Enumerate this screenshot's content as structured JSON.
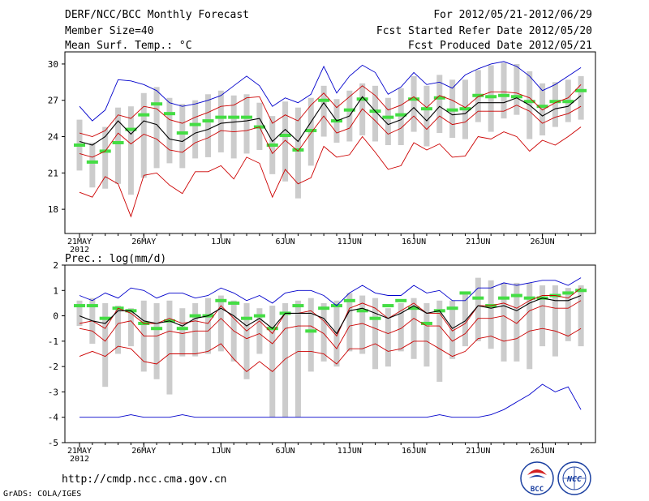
{
  "header": {
    "title": "DERF/NCC/BCC Monthly Forecast",
    "member_size": "Member Size=40",
    "variable": "Mean Surf. Temp.: °C",
    "period": "For 2012/05/21-2012/06/29",
    "start_date": "Fcst Started Refer Date 2012/05/20",
    "produced_date": "Fcst Produced Date 2012/05/21"
  },
  "footer": {
    "url": "http://cmdp.ncc.cma.gov.cn",
    "grads": "GrADS: COLA/IGES",
    "logo_bcc": "BCC",
    "logo_ncc": "NCC"
  },
  "colors": {
    "max_min": "#0000cc",
    "quartile": "#cc0000",
    "mean": "#000000",
    "observed": "#44dd44",
    "spread_bar": "#cccccc"
  },
  "chart_data": [
    {
      "type": "line",
      "title": "Mean Surf. Temp.: °C",
      "ylim": [
        16,
        31
      ],
      "yticks": [
        18,
        21,
        24,
        27,
        30
      ],
      "xtick_labels": [
        "21MAY",
        "26MAY",
        "1JUN",
        "6JUN",
        "11JUN",
        "16JUN",
        "21JUN",
        "26JUN"
      ],
      "xtick_index": [
        0,
        5,
        11,
        16,
        21,
        26,
        31,
        36
      ],
      "year_label": "2012",
      "series": [
        {
          "name": "max",
          "values": [
            26.5,
            25.3,
            26.2,
            28.7,
            28.6,
            28.3,
            27.8,
            26.8,
            26.5,
            26.7,
            27.0,
            27.4,
            28.2,
            29.0,
            28.2,
            26.5,
            27.2,
            26.8,
            27.5,
            29.8,
            27.6,
            29.0,
            29.9,
            29.3,
            27.5,
            28.1,
            29.3,
            28.3,
            28.5,
            28.0,
            29.1,
            29.6,
            30.0,
            30.2,
            29.8,
            29.0,
            27.8,
            28.3,
            29.0,
            29.7
          ]
        },
        {
          "name": "upper_quartile",
          "values": [
            24.3,
            24.0,
            24.5,
            25.8,
            25.5,
            26.5,
            26.3,
            25.4,
            25.1,
            25.6,
            26.0,
            26.5,
            26.6,
            27.2,
            27.3,
            25.1,
            25.8,
            25.3,
            26.6,
            27.6,
            26.4,
            27.3,
            28.2,
            27.4,
            26.2,
            26.6,
            27.3,
            26.4,
            27.4,
            27.0,
            26.4,
            27.3,
            27.7,
            27.7,
            27.6,
            27.2,
            26.2,
            26.8,
            27.2,
            28.3
          ]
        },
        {
          "name": "mean",
          "values": [
            23.6,
            23.3,
            24.0,
            25.3,
            24.2,
            25.3,
            25.0,
            23.8,
            23.6,
            24.3,
            24.6,
            25.1,
            25.2,
            25.3,
            25.5,
            23.6,
            24.6,
            23.6,
            25.2,
            26.8,
            25.3,
            25.7,
            27.3,
            26.1,
            25.0,
            25.4,
            26.4,
            25.3,
            26.5,
            25.8,
            25.9,
            26.8,
            26.8,
            26.8,
            27.2,
            26.6,
            25.7,
            26.3,
            26.5,
            27.4
          ]
        },
        {
          "name": "lower_quartile",
          "values": [
            22.6,
            22.3,
            22.8,
            24.3,
            23.4,
            24.2,
            23.8,
            22.9,
            22.7,
            23.5,
            23.9,
            24.5,
            24.4,
            24.5,
            24.8,
            22.6,
            23.7,
            22.8,
            24.3,
            25.7,
            24.3,
            24.7,
            26.3,
            25.3,
            24.2,
            24.7,
            25.7,
            24.6,
            25.7,
            25.0,
            25.2,
            26.1,
            26.1,
            26.1,
            26.6,
            26.1,
            25.1,
            25.6,
            25.9,
            26.5
          ]
        },
        {
          "name": "min",
          "values": [
            19.4,
            19.0,
            20.7,
            20.1,
            17.4,
            20.8,
            21.0,
            20.0,
            19.3,
            21.1,
            21.1,
            21.6,
            20.5,
            22.3,
            21.8,
            19.0,
            21.3,
            20.1,
            20.6,
            23.2,
            22.3,
            22.5,
            24.0,
            22.7,
            21.3,
            21.6,
            23.5,
            22.9,
            23.4,
            22.3,
            22.4,
            24.0,
            23.8,
            24.4,
            24.0,
            22.8,
            23.7,
            23.3,
            24.0,
            24.8
          ]
        },
        {
          "name": "observed",
          "values": [
            23.3,
            21.9,
            22.8,
            23.5,
            24.6,
            25.8,
            26.7,
            25.9,
            24.3,
            25.0,
            25.3,
            25.6,
            25.6,
            25.6,
            24.8,
            23.3,
            24.1,
            22.9,
            24.5,
            27.0,
            25.3,
            26.2,
            27.1,
            26.1,
            25.6,
            25.8,
            27.1,
            26.3,
            27.2,
            26.2,
            26.3,
            27.4,
            27.3,
            27.4,
            27.3,
            26.9,
            26.5,
            26.9,
            26.9,
            27.8
          ]
        }
      ],
      "spread_bars": [
        [
          21.2,
          25.4
        ],
        [
          19.8,
          23.5
        ],
        [
          19.7,
          24.8
        ],
        [
          20.1,
          26.4
        ],
        [
          19.2,
          26.5
        ],
        [
          20.6,
          27.6
        ],
        [
          21.4,
          28.1
        ],
        [
          21.8,
          27.2
        ],
        [
          21.4,
          26.7
        ],
        [
          22.2,
          27.0
        ],
        [
          22.3,
          27.5
        ],
        [
          22.7,
          27.8
        ],
        [
          22.2,
          27.4
        ],
        [
          22.6,
          27.5
        ],
        [
          22.9,
          26.8
        ],
        [
          20.9,
          25.7
        ],
        [
          20.3,
          26.9
        ],
        [
          18.9,
          26.4
        ],
        [
          21.6,
          27.2
        ],
        [
          24.0,
          28.2
        ],
        [
          23.5,
          27.1
        ],
        [
          23.6,
          27.8
        ],
        [
          24.1,
          28.4
        ],
        [
          23.6,
          28.2
        ],
        [
          23.3,
          27.2
        ],
        [
          23.3,
          28.0
        ],
        [
          24.4,
          29.0
        ],
        [
          23.2,
          28.2
        ],
        [
          24.3,
          29.1
        ],
        [
          23.9,
          28.7
        ],
        [
          23.8,
          28.7
        ],
        [
          25.2,
          29.5
        ],
        [
          24.4,
          29.9
        ],
        [
          25.5,
          30.1
        ],
        [
          25.8,
          30.0
        ],
        [
          23.8,
          29.4
        ],
        [
          24.1,
          28.4
        ],
        [
          24.8,
          28.5
        ],
        [
          25.2,
          28.7
        ],
        [
          25.4,
          29.0
        ]
      ]
    },
    {
      "type": "line",
      "title": "Prec.: log(mm/d)",
      "ylim": [
        -5,
        2
      ],
      "yticks": [
        -5,
        -4,
        -3,
        -2,
        -1,
        0,
        1,
        2
      ],
      "xtick_labels": [
        "21MAY",
        "26MAY",
        "1JUN",
        "6JUN",
        "11JUN",
        "16JUN",
        "21JUN",
        "26JUN"
      ],
      "xtick_index": [
        0,
        5,
        11,
        16,
        21,
        26,
        31,
        36
      ],
      "year_label": "2012",
      "series": [
        {
          "name": "max",
          "values": [
            0.8,
            0.6,
            0.9,
            0.7,
            1.1,
            1.0,
            0.7,
            0.9,
            0.9,
            0.7,
            0.8,
            1.1,
            0.9,
            0.6,
            0.8,
            0.5,
            0.9,
            1.0,
            1.0,
            0.8,
            0.4,
            0.9,
            1.2,
            0.9,
            0.8,
            0.8,
            1.2,
            0.9,
            1.0,
            0.6,
            0.6,
            1.1,
            1.1,
            1.3,
            1.2,
            1.3,
            1.4,
            1.4,
            1.2,
            1.5
          ]
        },
        {
          "name": "upper_quartile",
          "values": [
            -0.3,
            -0.2,
            -0.5,
            0.3,
            0.1,
            -0.3,
            -0.3,
            -0.1,
            -0.3,
            -0.2,
            -0.3,
            0.4,
            -0.1,
            -0.6,
            -0.2,
            -0.7,
            0.1,
            0.1,
            0.2,
            -0.2,
            -0.8,
            0.3,
            0.5,
            0.3,
            -0.1,
            0.2,
            0.5,
            0.1,
            0.1,
            -0.6,
            -0.3,
            0.4,
            0.4,
            0.5,
            0.3,
            0.6,
            0.8,
            0.8,
            0.7,
            1.1
          ]
        },
        {
          "name": "mean",
          "values": [
            0.0,
            -0.2,
            -0.3,
            0.2,
            0.2,
            -0.2,
            -0.3,
            -0.2,
            -0.4,
            -0.1,
            0.0,
            0.3,
            0.0,
            -0.4,
            -0.1,
            -0.5,
            0.1,
            0.1,
            0.1,
            -0.1,
            -0.7,
            0.2,
            0.3,
            0.1,
            -0.1,
            0.1,
            0.4,
            0.1,
            0.2,
            -0.5,
            -0.2,
            0.4,
            0.3,
            0.4,
            0.2,
            0.5,
            0.7,
            0.6,
            0.6,
            0.8
          ]
        },
        {
          "name": "lower_quartile",
          "values": [
            -0.5,
            -0.6,
            -1.0,
            -0.3,
            -0.2,
            -0.8,
            -0.8,
            -0.6,
            -0.7,
            -0.6,
            -0.6,
            -0.1,
            -0.6,
            -0.9,
            -0.7,
            -1.1,
            -0.5,
            -0.4,
            -0.4,
            -0.7,
            -1.3,
            -0.4,
            -0.3,
            -0.5,
            -0.7,
            -0.5,
            -0.1,
            -0.4,
            -0.4,
            -1.0,
            -0.7,
            -0.1,
            -0.1,
            0.0,
            -0.3,
            0.2,
            0.4,
            0.3,
            0.3,
            0.6
          ]
        },
        {
          "name": "min",
          "values": [
            -1.6,
            -1.4,
            -1.6,
            -1.2,
            -1.3,
            -1.8,
            -1.9,
            -1.5,
            -1.5,
            -1.5,
            -1.4,
            -1.1,
            -1.7,
            -2.2,
            -1.8,
            -2.2,
            -1.7,
            -1.4,
            -1.4,
            -1.5,
            -1.9,
            -1.3,
            -1.3,
            -1.1,
            -1.4,
            -1.3,
            -1.0,
            -1.0,
            -1.3,
            -1.6,
            -1.4,
            -0.9,
            -0.8,
            -1.0,
            -0.9,
            -0.6,
            -0.5,
            -0.6,
            -0.8,
            -0.5
          ]
        },
        {
          "name": "absolute_min",
          "values": [
            -4.0,
            -4.0,
            -4.0,
            -4.0,
            -3.9,
            -4.0,
            -4.0,
            -4.0,
            -3.9,
            -4.0,
            -4.0,
            -4.0,
            -4.0,
            -4.0,
            -4.0,
            -4.0,
            -4.0,
            -4.0,
            -4.0,
            -4.0,
            -4.0,
            -4.0,
            -4.0,
            -4.0,
            -4.0,
            -4.0,
            -4.0,
            -4.0,
            -3.9,
            -4.0,
            -4.0,
            -4.0,
            -3.9,
            -3.7,
            -3.4,
            -3.1,
            -2.7,
            -3.0,
            -2.8,
            -3.7
          ]
        },
        {
          "name": "observed",
          "values": [
            0.4,
            0.4,
            -0.1,
            0.3,
            0.2,
            -0.3,
            -0.5,
            -0.2,
            -0.5,
            0.0,
            0.0,
            0.6,
            0.5,
            -0.1,
            0.0,
            -0.5,
            0.1,
            0.4,
            -0.6,
            0.3,
            0.4,
            0.6,
            0.2,
            -0.1,
            0.4,
            0.6,
            0.3,
            -0.3,
            0.2,
            0.3,
            0.9,
            0.7,
            0.4,
            0.7,
            0.8,
            0.7,
            0.7,
            0.8,
            0.9,
            1.0
          ]
        }
      ],
      "spread_bars": [
        [
          -0.4,
          0.6
        ],
        [
          -1.1,
          0.7
        ],
        [
          -2.8,
          0.5
        ],
        [
          -1.5,
          0.4
        ],
        [
          -1.2,
          0.3
        ],
        [
          -2.2,
          0.6
        ],
        [
          -2.5,
          0.5
        ],
        [
          -3.1,
          0.6
        ],
        [
          -1.6,
          0.3
        ],
        [
          -1.6,
          0.5
        ],
        [
          -1.5,
          0.7
        ],
        [
          -1.4,
          0.8
        ],
        [
          -1.8,
          0.6
        ],
        [
          -2.5,
          0.5
        ],
        [
          -1.5,
          0.3
        ],
        [
          -4.0,
          0.4
        ],
        [
          -4.0,
          0.5
        ],
        [
          -4.0,
          0.6
        ],
        [
          -2.2,
          0.7
        ],
        [
          -1.8,
          0.5
        ],
        [
          -2.0,
          0.6
        ],
        [
          -1.4,
          0.9
        ],
        [
          -1.5,
          0.8
        ],
        [
          -2.1,
          0.7
        ],
        [
          -2.0,
          0.3
        ],
        [
          -1.4,
          0.5
        ],
        [
          -1.7,
          0.7
        ],
        [
          -2.0,
          0.5
        ],
        [
          -2.6,
          0.6
        ],
        [
          -1.7,
          0.6
        ],
        [
          -1.2,
          0.9
        ],
        [
          -1.0,
          1.5
        ],
        [
          -1.3,
          1.4
        ],
        [
          -1.8,
          1.3
        ],
        [
          -1.8,
          1.3
        ],
        [
          -2.1,
          1.3
        ],
        [
          -1.2,
          1.2
        ],
        [
          -1.6,
          1.2
        ],
        [
          -1.0,
          1.1
        ],
        [
          -1.2,
          1.2
        ]
      ]
    }
  ]
}
